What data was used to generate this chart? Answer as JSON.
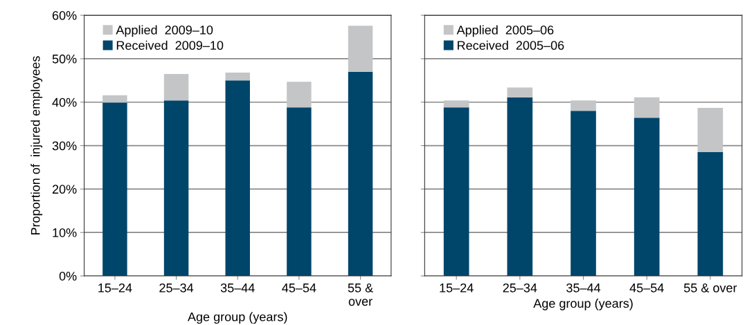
{
  "chart_data": [
    {
      "type": "bar",
      "stacked": true,
      "categories": [
        "15–24",
        "25–34",
        "35–44",
        "45–54",
        "55 &\nover"
      ],
      "xlabel": "Age group (years)",
      "ylabel": "Proportion of  injured employees",
      "ylim": [
        0,
        60
      ],
      "yticks": [
        {
          "value": 0,
          "label": "0%"
        },
        {
          "value": 10,
          "label": "10%"
        },
        {
          "value": 20,
          "label": "20%"
        },
        {
          "value": 30,
          "label": "30%"
        },
        {
          "value": 40,
          "label": "40%"
        },
        {
          "value": 50,
          "label": "50%"
        },
        {
          "value": 60,
          "label": "60%"
        }
      ],
      "grid": "y",
      "legend": "top left",
      "series": [
        {
          "name": "Received  2009–10",
          "color": "#00456a",
          "values": [
            39.9,
            40.4,
            45.0,
            38.8,
            47.0
          ]
        },
        {
          "name": "Applied  2009–10",
          "color": "#c4c5c7",
          "values": [
            1.7,
            6.1,
            1.8,
            5.9,
            10.6
          ]
        }
      ]
    },
    {
      "type": "bar",
      "stacked": true,
      "categories": [
        "15–24",
        "25–34",
        "35–44",
        "45–54",
        "55 & over"
      ],
      "xlabel": "Age group (years)",
      "ylim": [
        0,
        60
      ],
      "yticks": [
        {
          "value": 0,
          "label": null
        },
        {
          "value": 10,
          "label": null
        },
        {
          "value": 20,
          "label": null
        },
        {
          "value": 30,
          "label": null
        },
        {
          "value": 40,
          "label": null
        },
        {
          "value": 50,
          "label": null
        },
        {
          "value": 60,
          "label": null
        }
      ],
      "grid": "y",
      "legend": "top left",
      "tick_labels": "x",
      "series": [
        {
          "name": "Received  2005–06",
          "color": "#00456a",
          "values": [
            38.8,
            41.1,
            38.0,
            36.4,
            28.5
          ]
        },
        {
          "name": "Applied  2005–06",
          "color": "#c4c5c7",
          "values": [
            1.6,
            2.3,
            2.4,
            4.7,
            10.2
          ]
        }
      ]
    }
  ]
}
